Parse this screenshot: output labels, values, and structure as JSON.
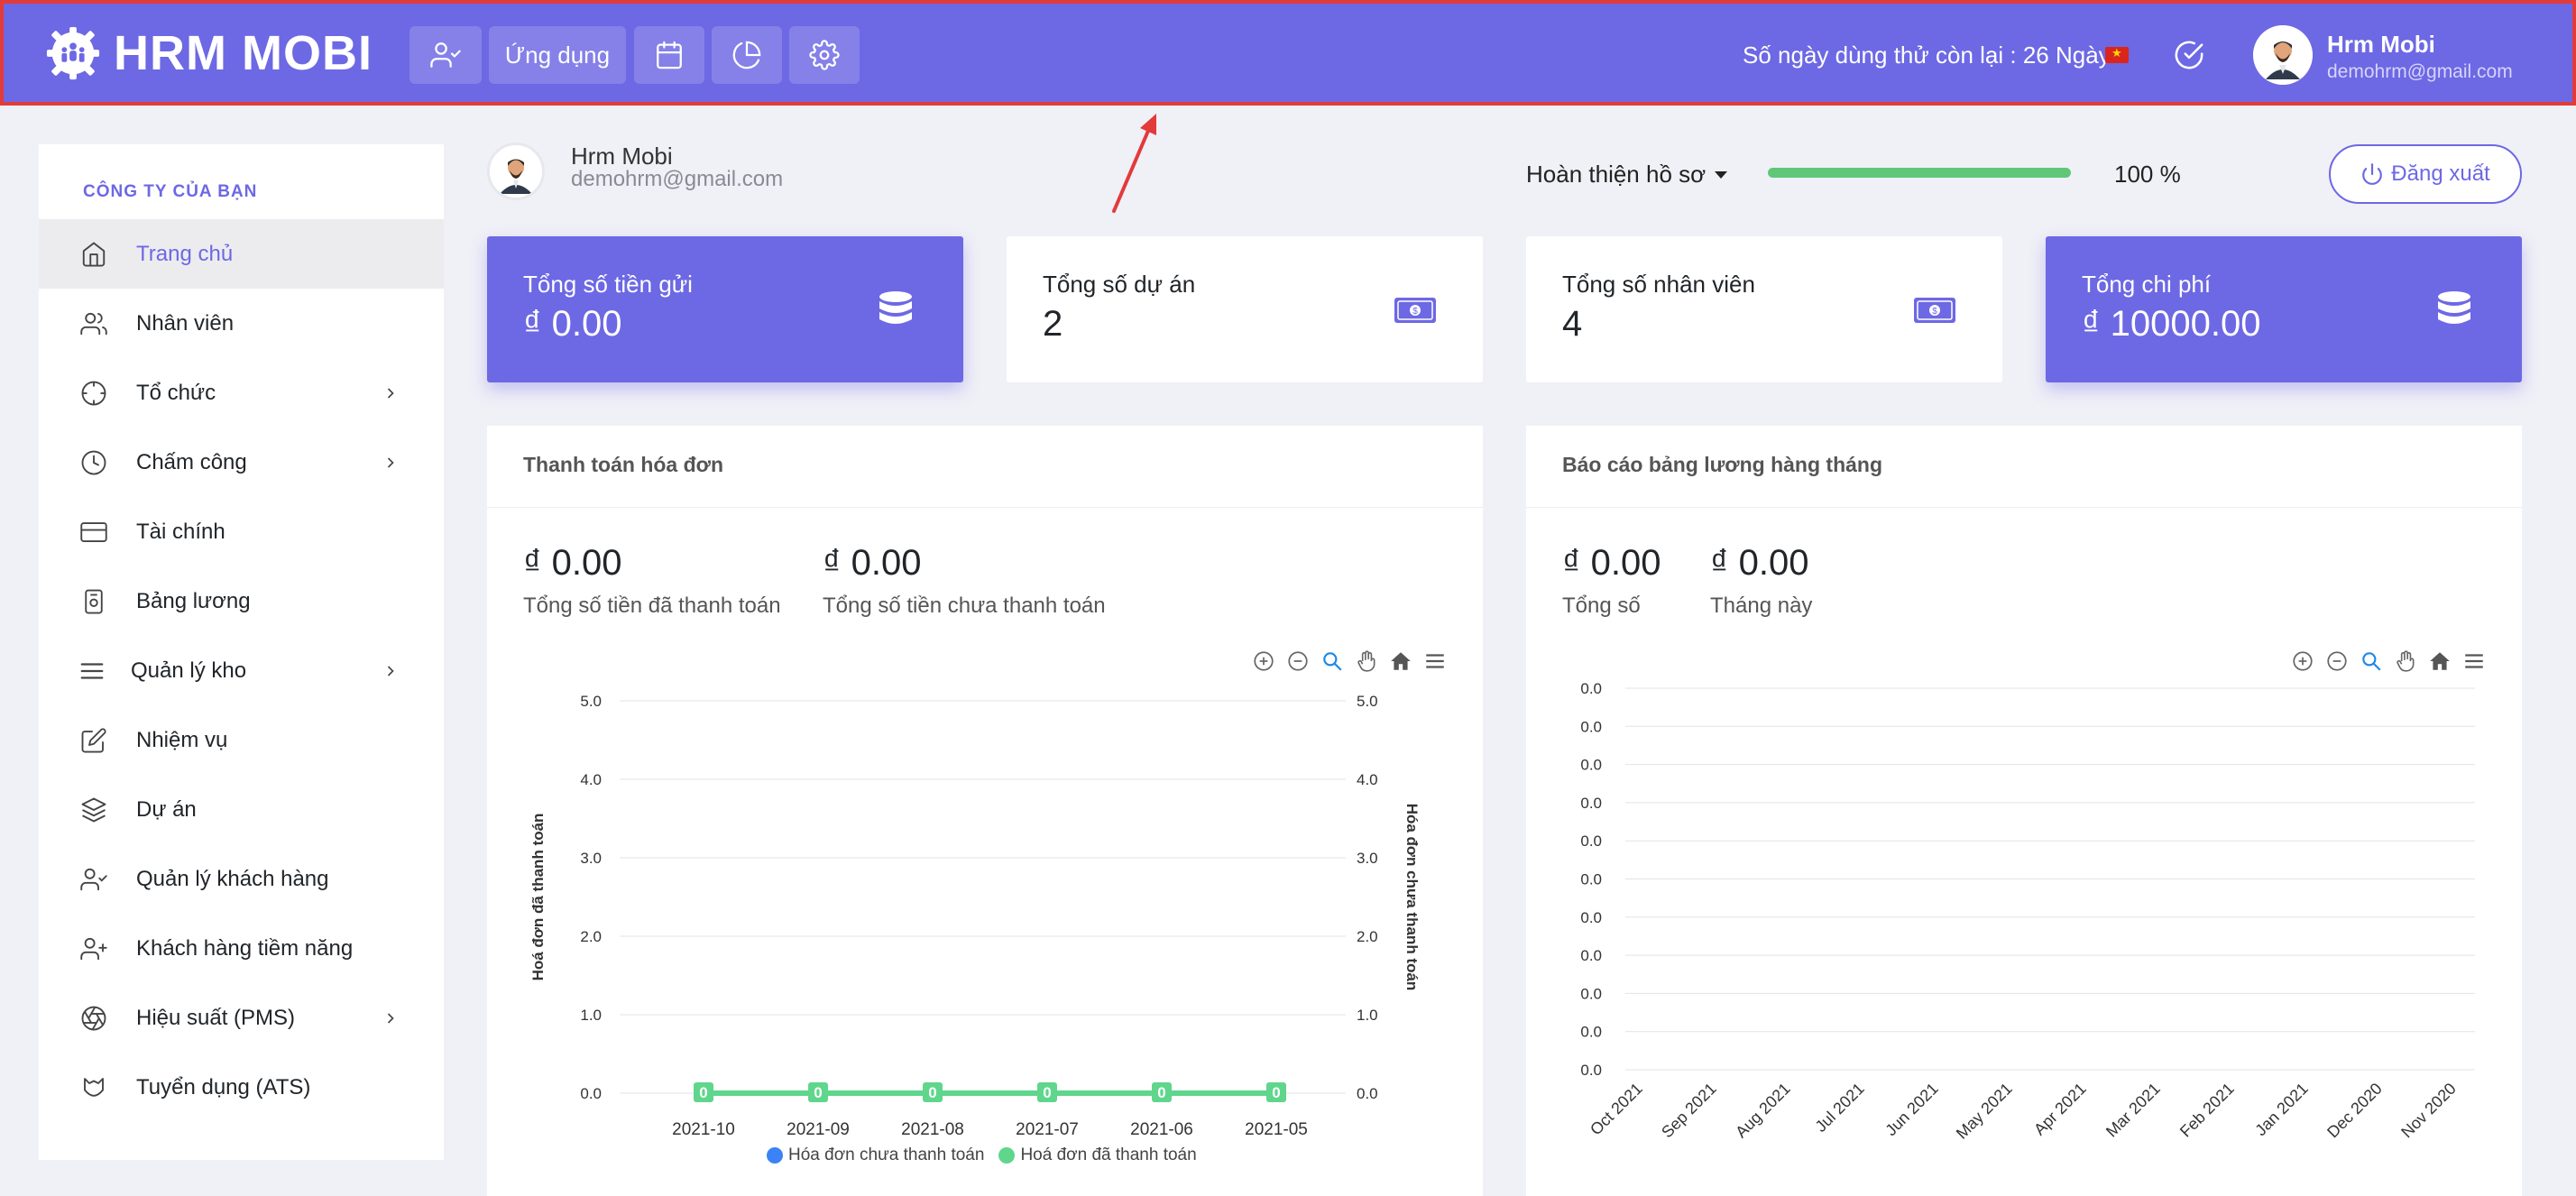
{
  "header": {
    "brand": "HRM MOBI",
    "apps_label": "Ứng dụng",
    "trial_text": "Số ngày dùng thử còn lại : 26 Ngày",
    "user_name": "Hrm Mobi",
    "user_email": "demohrm@gmail.com",
    "icons": [
      "user-check-icon",
      "calendar-icon",
      "pie-chart-icon",
      "gear-icon",
      "check-circle-icon",
      "vietnam-flag-icon"
    ],
    "colors": {
      "primary": "#6d68e4",
      "highlight_border": "#e33a3a"
    }
  },
  "sidebar": {
    "heading": "CÔNG TY CỦA BẠN",
    "items": [
      {
        "label": "Trang chủ",
        "icon": "home-icon",
        "active": true,
        "submenu": false
      },
      {
        "label": "Nhân viên",
        "icon": "users-icon",
        "submenu": false
      },
      {
        "label": "Tổ chức",
        "icon": "crosshair-icon",
        "submenu": true
      },
      {
        "label": "Chấm công",
        "icon": "clock-icon",
        "submenu": true
      },
      {
        "label": "Tài chính",
        "icon": "credit-card-icon",
        "submenu": false
      },
      {
        "label": "Bảng lương",
        "icon": "payroll-icon",
        "submenu": false
      },
      {
        "label": "Quản lý kho",
        "icon": "menu-icon",
        "submenu": true
      },
      {
        "label": "Nhiệm vụ",
        "icon": "edit-icon",
        "submenu": false
      },
      {
        "label": "Dự án",
        "icon": "layers-icon",
        "submenu": false
      },
      {
        "label": "Quản lý khách hàng",
        "icon": "user-check-icon",
        "submenu": false
      },
      {
        "label": "Khách hàng tiềm năng",
        "icon": "user-plus-icon",
        "submenu": false
      },
      {
        "label": "Hiệu suất (PMS)",
        "icon": "aperture-icon",
        "submenu": true
      },
      {
        "label": "Tuyển dụng (ATS)",
        "icon": "ats-icon",
        "submenu": false
      }
    ]
  },
  "profile": {
    "name": "Hrm Mobi",
    "email": "demohrm@gmail.com",
    "complete_label": "Hoàn thiện hồ sơ",
    "progress_percent": 100,
    "progress_text": "100 %",
    "logout_label": "Đăng xuất"
  },
  "stats": [
    {
      "label": "Tổng số tiền gửi",
      "value": "₫ 0.00",
      "icon": "database-icon",
      "style": "purple"
    },
    {
      "label": "Tổng số dự án",
      "value": "2",
      "icon": "money-icon",
      "style": "white"
    },
    {
      "label": "Tổng số nhân viên",
      "value": "4",
      "icon": "money-icon",
      "style": "white"
    },
    {
      "label": "Tổng chi phí",
      "value": "₫ 10000.00",
      "icon": "database-icon",
      "style": "purple"
    }
  ],
  "invoice_panel": {
    "title": "Thanh toán hóa đơn",
    "paid_value": "₫ 0.00",
    "paid_label": "Tổng số tiền đã thanh toán",
    "unpaid_value": "₫ 0.00",
    "unpaid_label": "Tổng số tiền chưa thanh toán"
  },
  "payroll_panel": {
    "title": "Báo cáo bảng lương hàng tháng",
    "total_value": "₫ 0.00",
    "total_label": "Tổng số",
    "month_value": "₫ 0.00",
    "month_label": "Tháng này"
  },
  "chart_data": [
    {
      "type": "line",
      "categories": [
        "2021-10",
        "2021-09",
        "2021-08",
        "2021-07",
        "2021-06",
        "2021-05"
      ],
      "ylabel": "Hoá đơn đã thanh toán",
      "ylabel_right": "Hóa đơn chưa thanh toán",
      "ylim": [
        0,
        5
      ],
      "yticks": [
        "0.0",
        "1.0",
        "2.0",
        "3.0",
        "4.0",
        "5.0"
      ],
      "series": [
        {
          "name": "Hóa đơn chưa thanh toán",
          "values": [
            0,
            0,
            0,
            0,
            0,
            0
          ],
          "color": "#3b82f6"
        },
        {
          "name": "Hoá đơn đã thanh toán",
          "values": [
            0,
            0,
            0,
            0,
            0,
            0
          ],
          "color": "#5fd68c"
        }
      ],
      "data_labels": [
        "0",
        "0",
        "0",
        "0",
        "0",
        "0"
      ],
      "grid": true,
      "legend": "bottom"
    },
    {
      "type": "line",
      "categories": [
        "Oct 2021",
        "Sep 2021",
        "Aug 2021",
        "Jul 2021",
        "Jun 2021",
        "May 2021",
        "Apr 2021",
        "Mar 2021",
        "Feb 2021",
        "Jan 2021",
        "Dec 2020",
        "Nov 2020"
      ],
      "yticks": [
        "0.0",
        "0.0",
        "0.0",
        "0.0",
        "0.0",
        "0.0",
        "0.0",
        "0.0",
        "0.0",
        "0.0",
        "0.0"
      ],
      "grid": true
    }
  ]
}
